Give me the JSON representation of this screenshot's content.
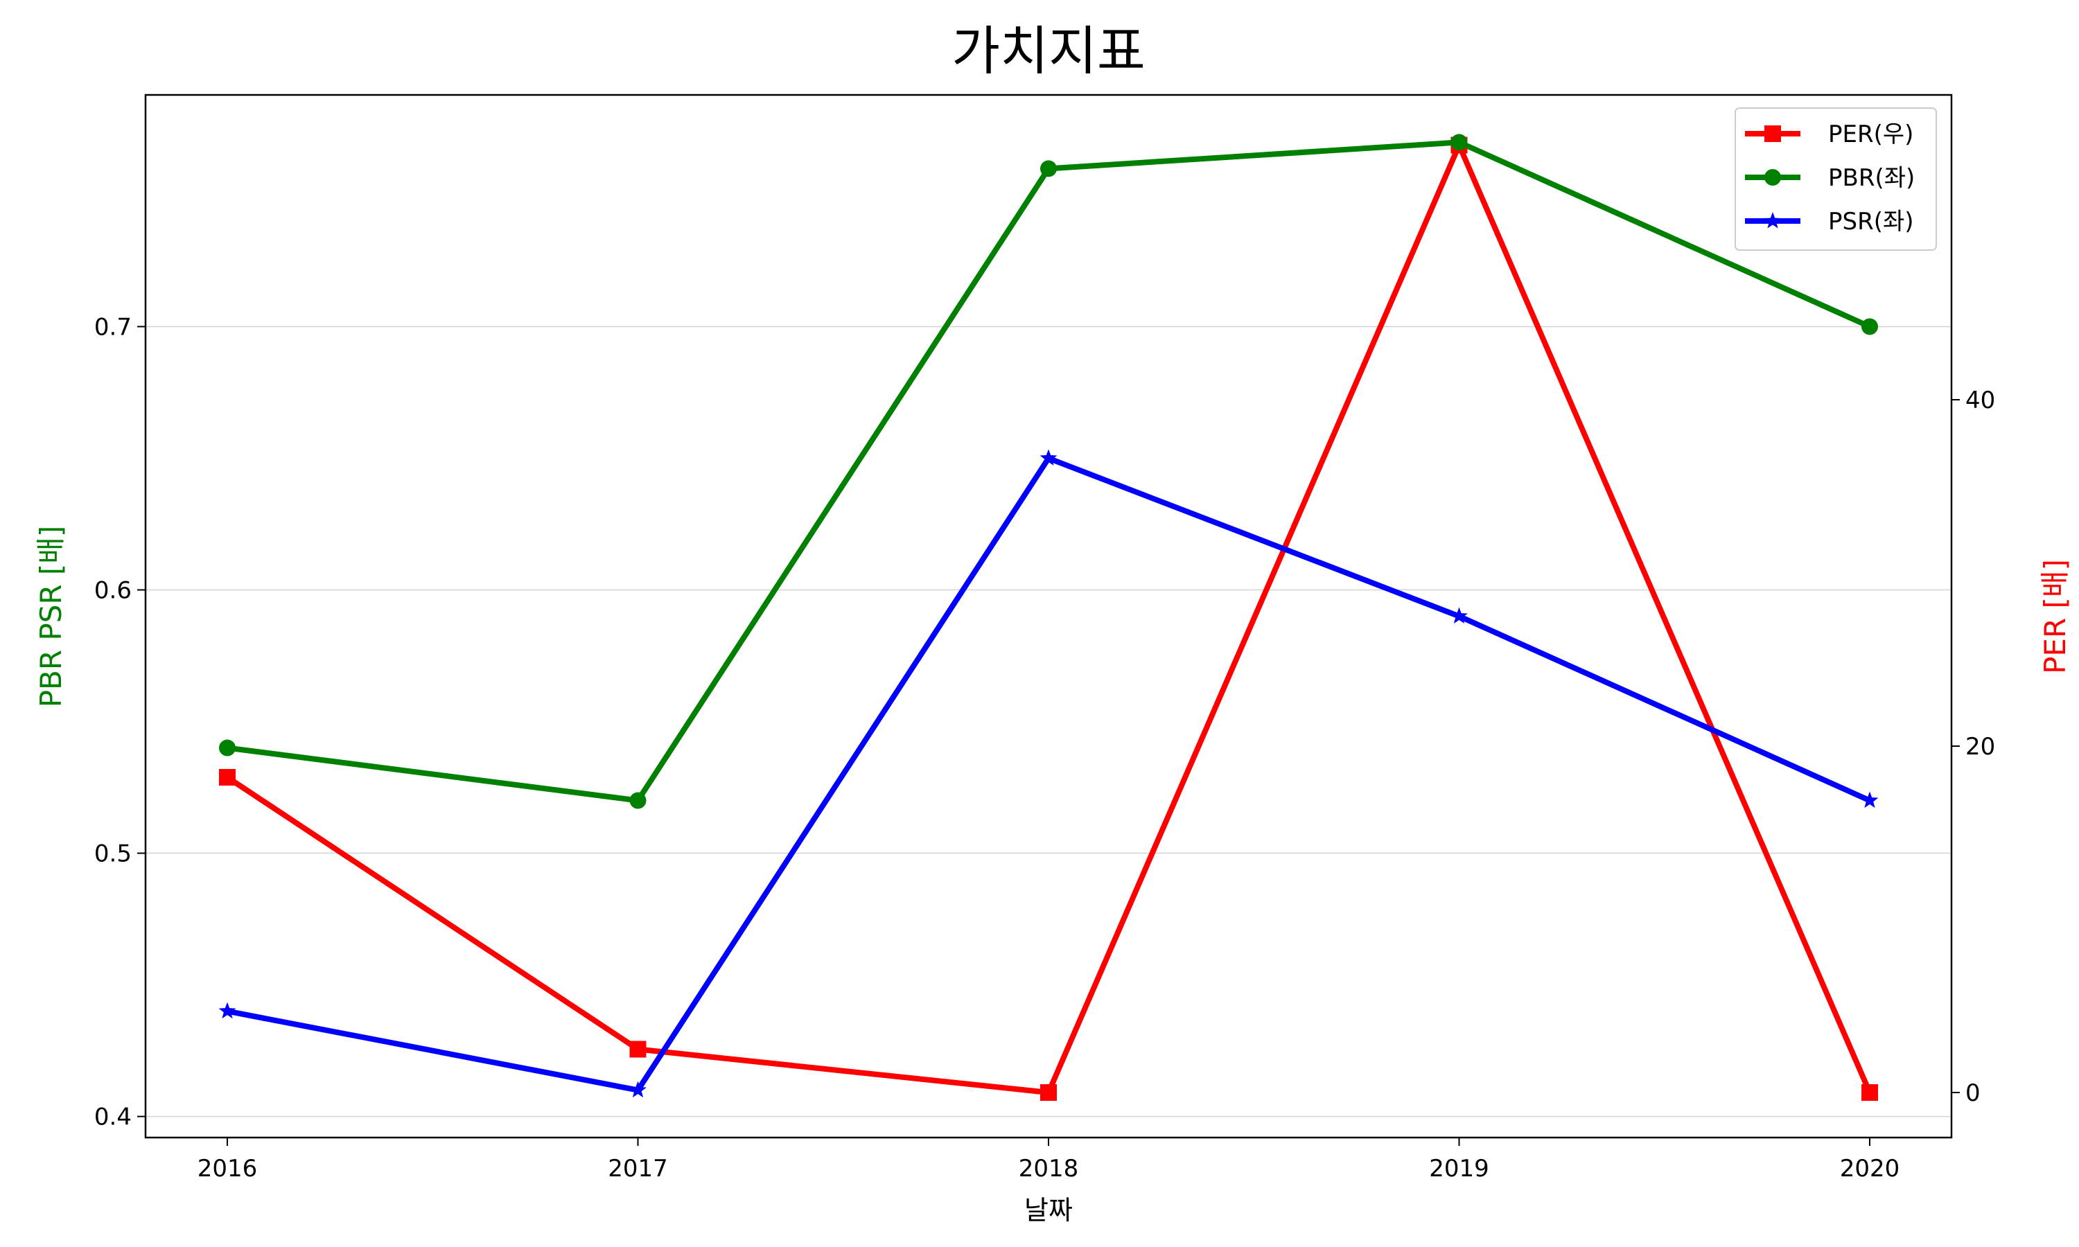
{
  "chart_data": {
    "type": "line",
    "title": "가치지표",
    "xlabel": "날짜",
    "ylabel_left": "PBR PSR [배]",
    "ylabel_right": "PER [배]",
    "left_label_color": "#008000",
    "right_label_color": "#ff0000",
    "categories": [
      "2016",
      "2017",
      "2018",
      "2019",
      "2020"
    ],
    "ylim_left": [
      0.392,
      0.788
    ],
    "yticks_left": [
      "0.4",
      "0.5",
      "0.6",
      "0.7"
    ],
    "ylim_right": [
      -2.6,
      57.6
    ],
    "yticks_right": [
      "0",
      "20",
      "40"
    ],
    "grid": "horizontal (left axis)",
    "legend_position": "top-right",
    "series": [
      {
        "name": "PER(우)",
        "axis": "right",
        "color": "#ff0000",
        "marker": "square",
        "values": [
          18.2,
          2.5,
          0,
          54.7,
          0
        ]
      },
      {
        "name": "PBR(좌)",
        "axis": "left",
        "color": "#008000",
        "marker": "circle",
        "values": [
          0.54,
          0.52,
          0.76,
          0.77,
          0.7
        ]
      },
      {
        "name": "PSR(좌)",
        "axis": "left",
        "color": "#0000ff",
        "marker": "star",
        "values": [
          0.44,
          0.41,
          0.65,
          0.59,
          0.52
        ]
      }
    ]
  }
}
